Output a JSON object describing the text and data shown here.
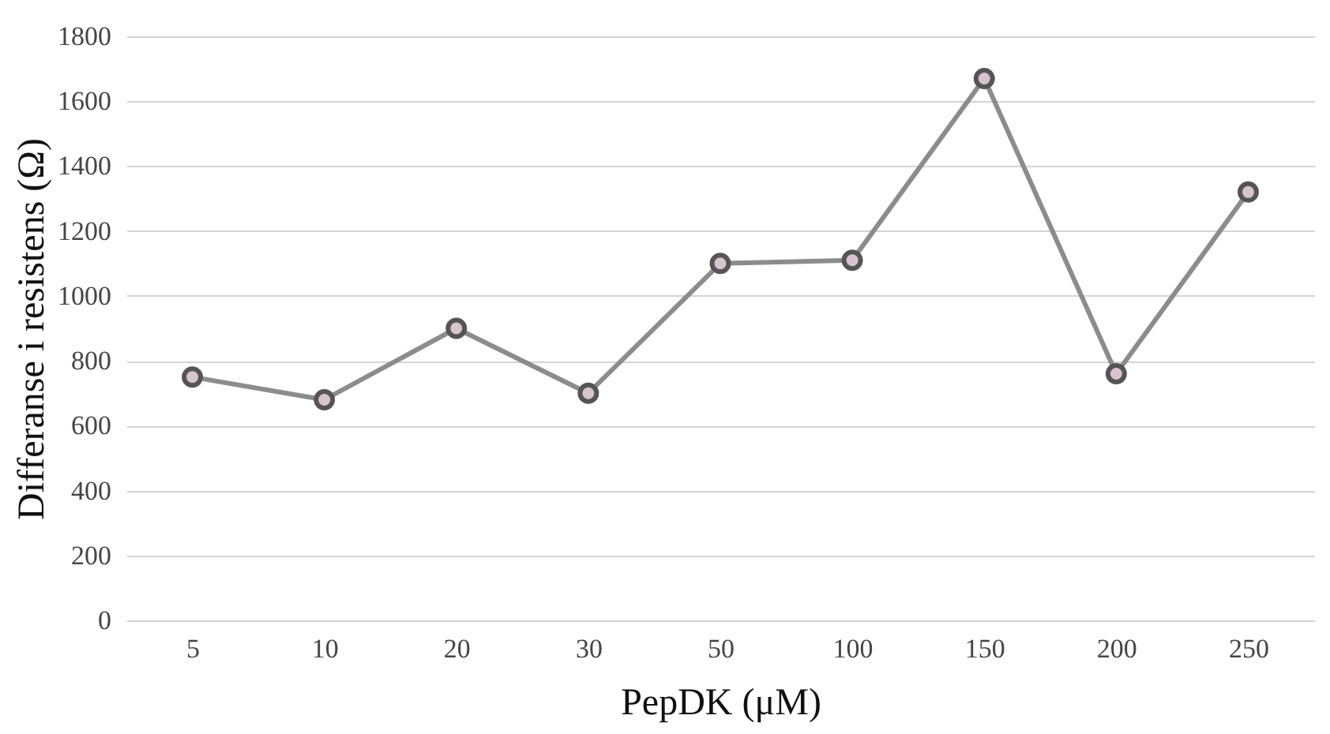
{
  "chart_data": {
    "type": "line",
    "xlabel": "PepDK (μM)",
    "ylabel": "Differanse i resistens (Ω)",
    "categories": [
      "5",
      "10",
      "20",
      "30",
      "50",
      "100",
      "150",
      "200",
      "250"
    ],
    "series": [
      {
        "color": "#8c8c8c",
        "values": [
          750,
          680,
          900,
          700,
          1100,
          1110,
          1670,
          760,
          1320
        ]
      }
    ],
    "ylim": [
      0,
      1800
    ],
    "yticks": [
      0,
      200,
      400,
      600,
      800,
      1000,
      1200,
      1400,
      1600,
      1800
    ],
    "grid": "y",
    "marker": "circle",
    "line_style": "solid"
  }
}
